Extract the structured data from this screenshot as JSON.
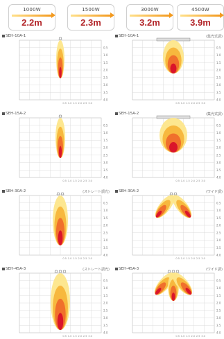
{
  "badges": [
    {
      "watt": "1000W",
      "distance": "2.2m"
    },
    {
      "watt": "1500W",
      "distance": "2.3m"
    },
    {
      "watt": "3000W",
      "distance": "3.2m"
    },
    {
      "watt": "4500W",
      "distance": "3.9m"
    }
  ],
  "rows": [
    {
      "left_model": "SEH-10A-1",
      "right_model": "SEH-10A-1",
      "left_note": "",
      "right_note": "(集光式調)"
    },
    {
      "left_model": "SEH-15A-2",
      "right_model": "SEH-15A-2",
      "left_note": "",
      "right_note": "(集光式調)"
    },
    {
      "left_model": "SEH-30A-2",
      "right_model": "SEH-30A-2",
      "left_note": "(ストレート調光)",
      "right_note": "(ワイド調)"
    },
    {
      "left_model": "SEH-45A-3",
      "right_model": "SEH-45A-3",
      "left_note": "(ストレート調光)",
      "right_note": "(ワイド調)"
    }
  ],
  "scale_labels": [
    "0.5",
    "1.0",
    "1.5",
    "2.0",
    "2.5",
    "3.0",
    "3.5",
    "4.0"
  ],
  "colors": {
    "hot": "#d8102a",
    "mid": "#ef6b2b",
    "warm": "#f7b53a",
    "cool": "#fde68a"
  }
}
